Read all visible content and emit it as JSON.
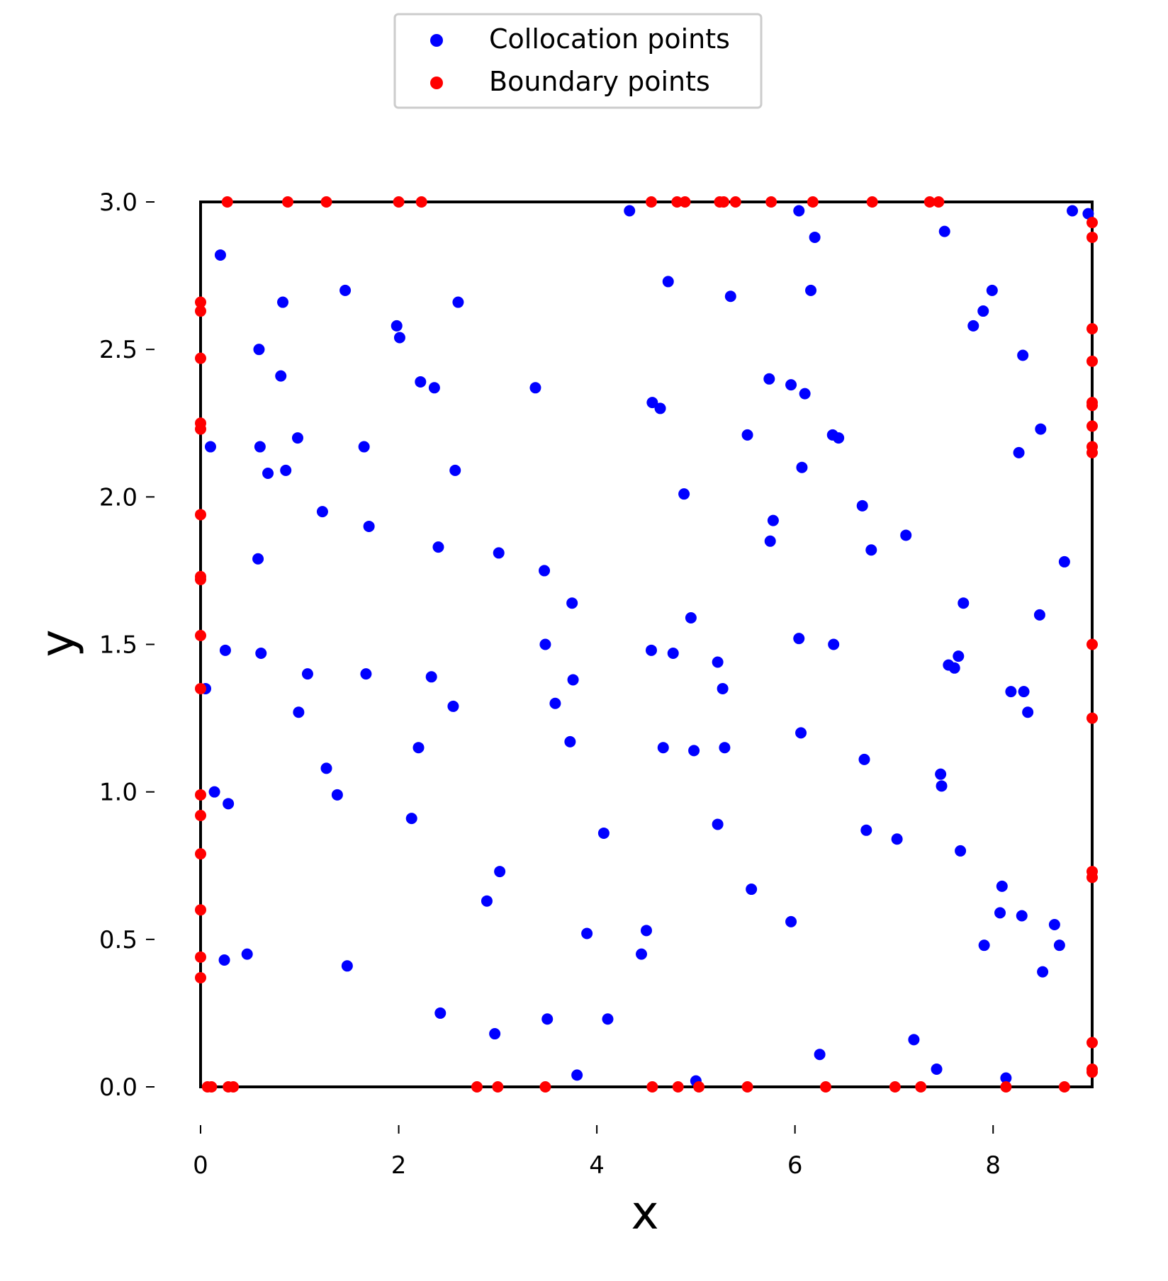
{
  "chart_data": {
    "type": "scatter",
    "title": "",
    "xlabel": "x",
    "ylabel": "y",
    "xlim": [
      0,
      9
    ],
    "ylim": [
      0,
      3
    ],
    "xticks": [
      "0",
      "2",
      "4",
      "6",
      "8"
    ],
    "yticks": [
      "0.0",
      "0.5",
      "1.0",
      "1.5",
      "2.0",
      "2.5",
      "3.0"
    ],
    "grid": false,
    "legend_position": "top-center",
    "series": [
      {
        "name": "Collocation points",
        "color": "#0000ff",
        "points": [
          [
            0.2,
            2.82
          ],
          [
            0.1,
            2.17
          ],
          [
            0.05,
            1.35
          ],
          [
            0.14,
            1.0
          ],
          [
            0.25,
            1.48
          ],
          [
            0.28,
            0.96
          ],
          [
            0.24,
            0.43
          ],
          [
            0.47,
            0.45
          ],
          [
            0.59,
            2.5
          ],
          [
            0.6,
            2.17
          ],
          [
            0.58,
            1.79
          ],
          [
            0.61,
            1.47
          ],
          [
            0.68,
            2.08
          ],
          [
            0.83,
            2.66
          ],
          [
            0.81,
            2.41
          ],
          [
            0.86,
            2.09
          ],
          [
            0.98,
            2.2
          ],
          [
            0.99,
            1.27
          ],
          [
            1.08,
            1.4
          ],
          [
            1.23,
            1.95
          ],
          [
            1.27,
            1.08
          ],
          [
            1.38,
            0.99
          ],
          [
            1.46,
            2.7
          ],
          [
            1.48,
            0.41
          ],
          [
            1.65,
            2.17
          ],
          [
            1.67,
            1.4
          ],
          [
            1.7,
            1.9
          ],
          [
            1.98,
            2.58
          ],
          [
            2.01,
            2.54
          ],
          [
            2.13,
            0.91
          ],
          [
            2.2,
            1.15
          ],
          [
            2.22,
            2.39
          ],
          [
            2.33,
            1.39
          ],
          [
            2.36,
            2.37
          ],
          [
            2.4,
            1.83
          ],
          [
            2.42,
            0.25
          ],
          [
            2.55,
            1.29
          ],
          [
            2.57,
            2.09
          ],
          [
            2.6,
            2.66
          ],
          [
            2.89,
            0.63
          ],
          [
            2.97,
            0.18
          ],
          [
            3.01,
            1.81
          ],
          [
            3.02,
            0.73
          ],
          [
            3.38,
            2.37
          ],
          [
            3.47,
            1.75
          ],
          [
            3.48,
            1.5
          ],
          [
            3.5,
            0.23
          ],
          [
            3.58,
            1.3
          ],
          [
            3.73,
            1.17
          ],
          [
            3.75,
            1.64
          ],
          [
            3.76,
            1.38
          ],
          [
            3.8,
            0.04
          ],
          [
            3.9,
            0.52
          ],
          [
            4.07,
            0.86
          ],
          [
            4.11,
            0.23
          ],
          [
            4.33,
            2.97
          ],
          [
            4.45,
            0.45
          ],
          [
            4.5,
            0.53
          ],
          [
            4.55,
            1.48
          ],
          [
            4.56,
            2.32
          ],
          [
            4.64,
            2.3
          ],
          [
            4.67,
            1.15
          ],
          [
            4.72,
            2.73
          ],
          [
            4.77,
            1.47
          ],
          [
            4.88,
            2.01
          ],
          [
            4.95,
            1.59
          ],
          [
            4.98,
            1.14
          ],
          [
            5.0,
            0.02
          ],
          [
            5.22,
            1.44
          ],
          [
            5.22,
            0.89
          ],
          [
            5.27,
            1.35
          ],
          [
            5.29,
            1.15
          ],
          [
            5.35,
            2.68
          ],
          [
            5.52,
            2.21
          ],
          [
            5.56,
            0.67
          ],
          [
            5.74,
            2.4
          ],
          [
            5.75,
            1.85
          ],
          [
            5.78,
            1.92
          ],
          [
            5.96,
            0.56
          ],
          [
            5.96,
            2.38
          ],
          [
            6.04,
            2.97
          ],
          [
            6.04,
            1.52
          ],
          [
            6.06,
            1.2
          ],
          [
            6.07,
            2.1
          ],
          [
            6.1,
            2.35
          ],
          [
            6.16,
            2.7
          ],
          [
            6.2,
            2.88
          ],
          [
            6.25,
            0.11
          ],
          [
            6.38,
            2.21
          ],
          [
            6.39,
            1.5
          ],
          [
            6.44,
            2.2
          ],
          [
            6.68,
            1.97
          ],
          [
            6.7,
            1.11
          ],
          [
            6.72,
            0.87
          ],
          [
            6.77,
            1.82
          ],
          [
            7.03,
            0.84
          ],
          [
            7.12,
            1.87
          ],
          [
            7.2,
            0.16
          ],
          [
            7.43,
            0.06
          ],
          [
            7.47,
            1.06
          ],
          [
            7.48,
            1.02
          ],
          [
            7.51,
            2.9
          ],
          [
            7.55,
            1.43
          ],
          [
            7.61,
            1.42
          ],
          [
            7.65,
            1.46
          ],
          [
            7.67,
            0.8
          ],
          [
            7.7,
            1.64
          ],
          [
            7.8,
            2.58
          ],
          [
            7.9,
            2.63
          ],
          [
            7.91,
            0.48
          ],
          [
            7.99,
            2.7
          ],
          [
            8.07,
            0.59
          ],
          [
            8.09,
            0.68
          ],
          [
            8.13,
            0.03
          ],
          [
            8.18,
            1.34
          ],
          [
            8.26,
            2.15
          ],
          [
            8.29,
            0.58
          ],
          [
            8.3,
            2.48
          ],
          [
            8.31,
            1.34
          ],
          [
            8.35,
            1.27
          ],
          [
            8.47,
            1.6
          ],
          [
            8.48,
            2.23
          ],
          [
            8.5,
            0.39
          ],
          [
            8.62,
            0.55
          ],
          [
            8.67,
            0.48
          ],
          [
            8.72,
            1.78
          ],
          [
            8.8,
            2.97
          ],
          [
            8.96,
            2.96
          ]
        ]
      },
      {
        "name": "Boundary points",
        "color": "#ff0000",
        "points": [
          [
            0.27,
            3.0
          ],
          [
            0.88,
            3.0
          ],
          [
            1.27,
            3.0
          ],
          [
            2.0,
            3.0
          ],
          [
            2.23,
            3.0
          ],
          [
            4.55,
            3.0
          ],
          [
            4.81,
            3.0
          ],
          [
            4.89,
            3.0
          ],
          [
            5.24,
            3.0
          ],
          [
            5.28,
            3.0
          ],
          [
            5.4,
            3.0
          ],
          [
            5.76,
            3.0
          ],
          [
            6.18,
            3.0
          ],
          [
            6.78,
            3.0
          ],
          [
            7.36,
            3.0
          ],
          [
            7.45,
            3.0
          ],
          [
            0.07,
            0.0
          ],
          [
            0.11,
            0.0
          ],
          [
            0.28,
            0.0
          ],
          [
            0.33,
            0.0
          ],
          [
            2.79,
            0.0
          ],
          [
            3.0,
            0.0
          ],
          [
            3.48,
            0.0
          ],
          [
            4.56,
            0.0
          ],
          [
            4.82,
            0.0
          ],
          [
            5.03,
            0.0
          ],
          [
            5.52,
            0.0
          ],
          [
            6.31,
            0.0
          ],
          [
            7.01,
            0.0
          ],
          [
            7.27,
            0.0
          ],
          [
            8.13,
            0.0
          ],
          [
            8.72,
            0.0
          ],
          [
            0.0,
            2.66
          ],
          [
            0.0,
            2.63
          ],
          [
            0.0,
            2.47
          ],
          [
            0.0,
            2.25
          ],
          [
            0.0,
            2.23
          ],
          [
            0.0,
            1.94
          ],
          [
            0.0,
            1.73
          ],
          [
            0.0,
            1.72
          ],
          [
            0.0,
            1.53
          ],
          [
            0.0,
            1.35
          ],
          [
            0.0,
            0.99
          ],
          [
            0.0,
            0.92
          ],
          [
            0.0,
            0.79
          ],
          [
            0.0,
            0.6
          ],
          [
            0.0,
            0.44
          ],
          [
            0.0,
            0.37
          ],
          [
            9.0,
            2.93
          ],
          [
            9.0,
            2.88
          ],
          [
            9.0,
            2.57
          ],
          [
            9.0,
            2.46
          ],
          [
            9.0,
            2.32
          ],
          [
            9.0,
            2.31
          ],
          [
            9.0,
            2.24
          ],
          [
            9.0,
            2.17
          ],
          [
            9.0,
            2.15
          ],
          [
            9.0,
            1.5
          ],
          [
            9.0,
            1.25
          ],
          [
            9.0,
            0.73
          ],
          [
            9.0,
            0.71
          ],
          [
            9.0,
            0.15
          ],
          [
            9.0,
            0.06
          ],
          [
            9.0,
            0.05
          ]
        ]
      }
    ]
  }
}
